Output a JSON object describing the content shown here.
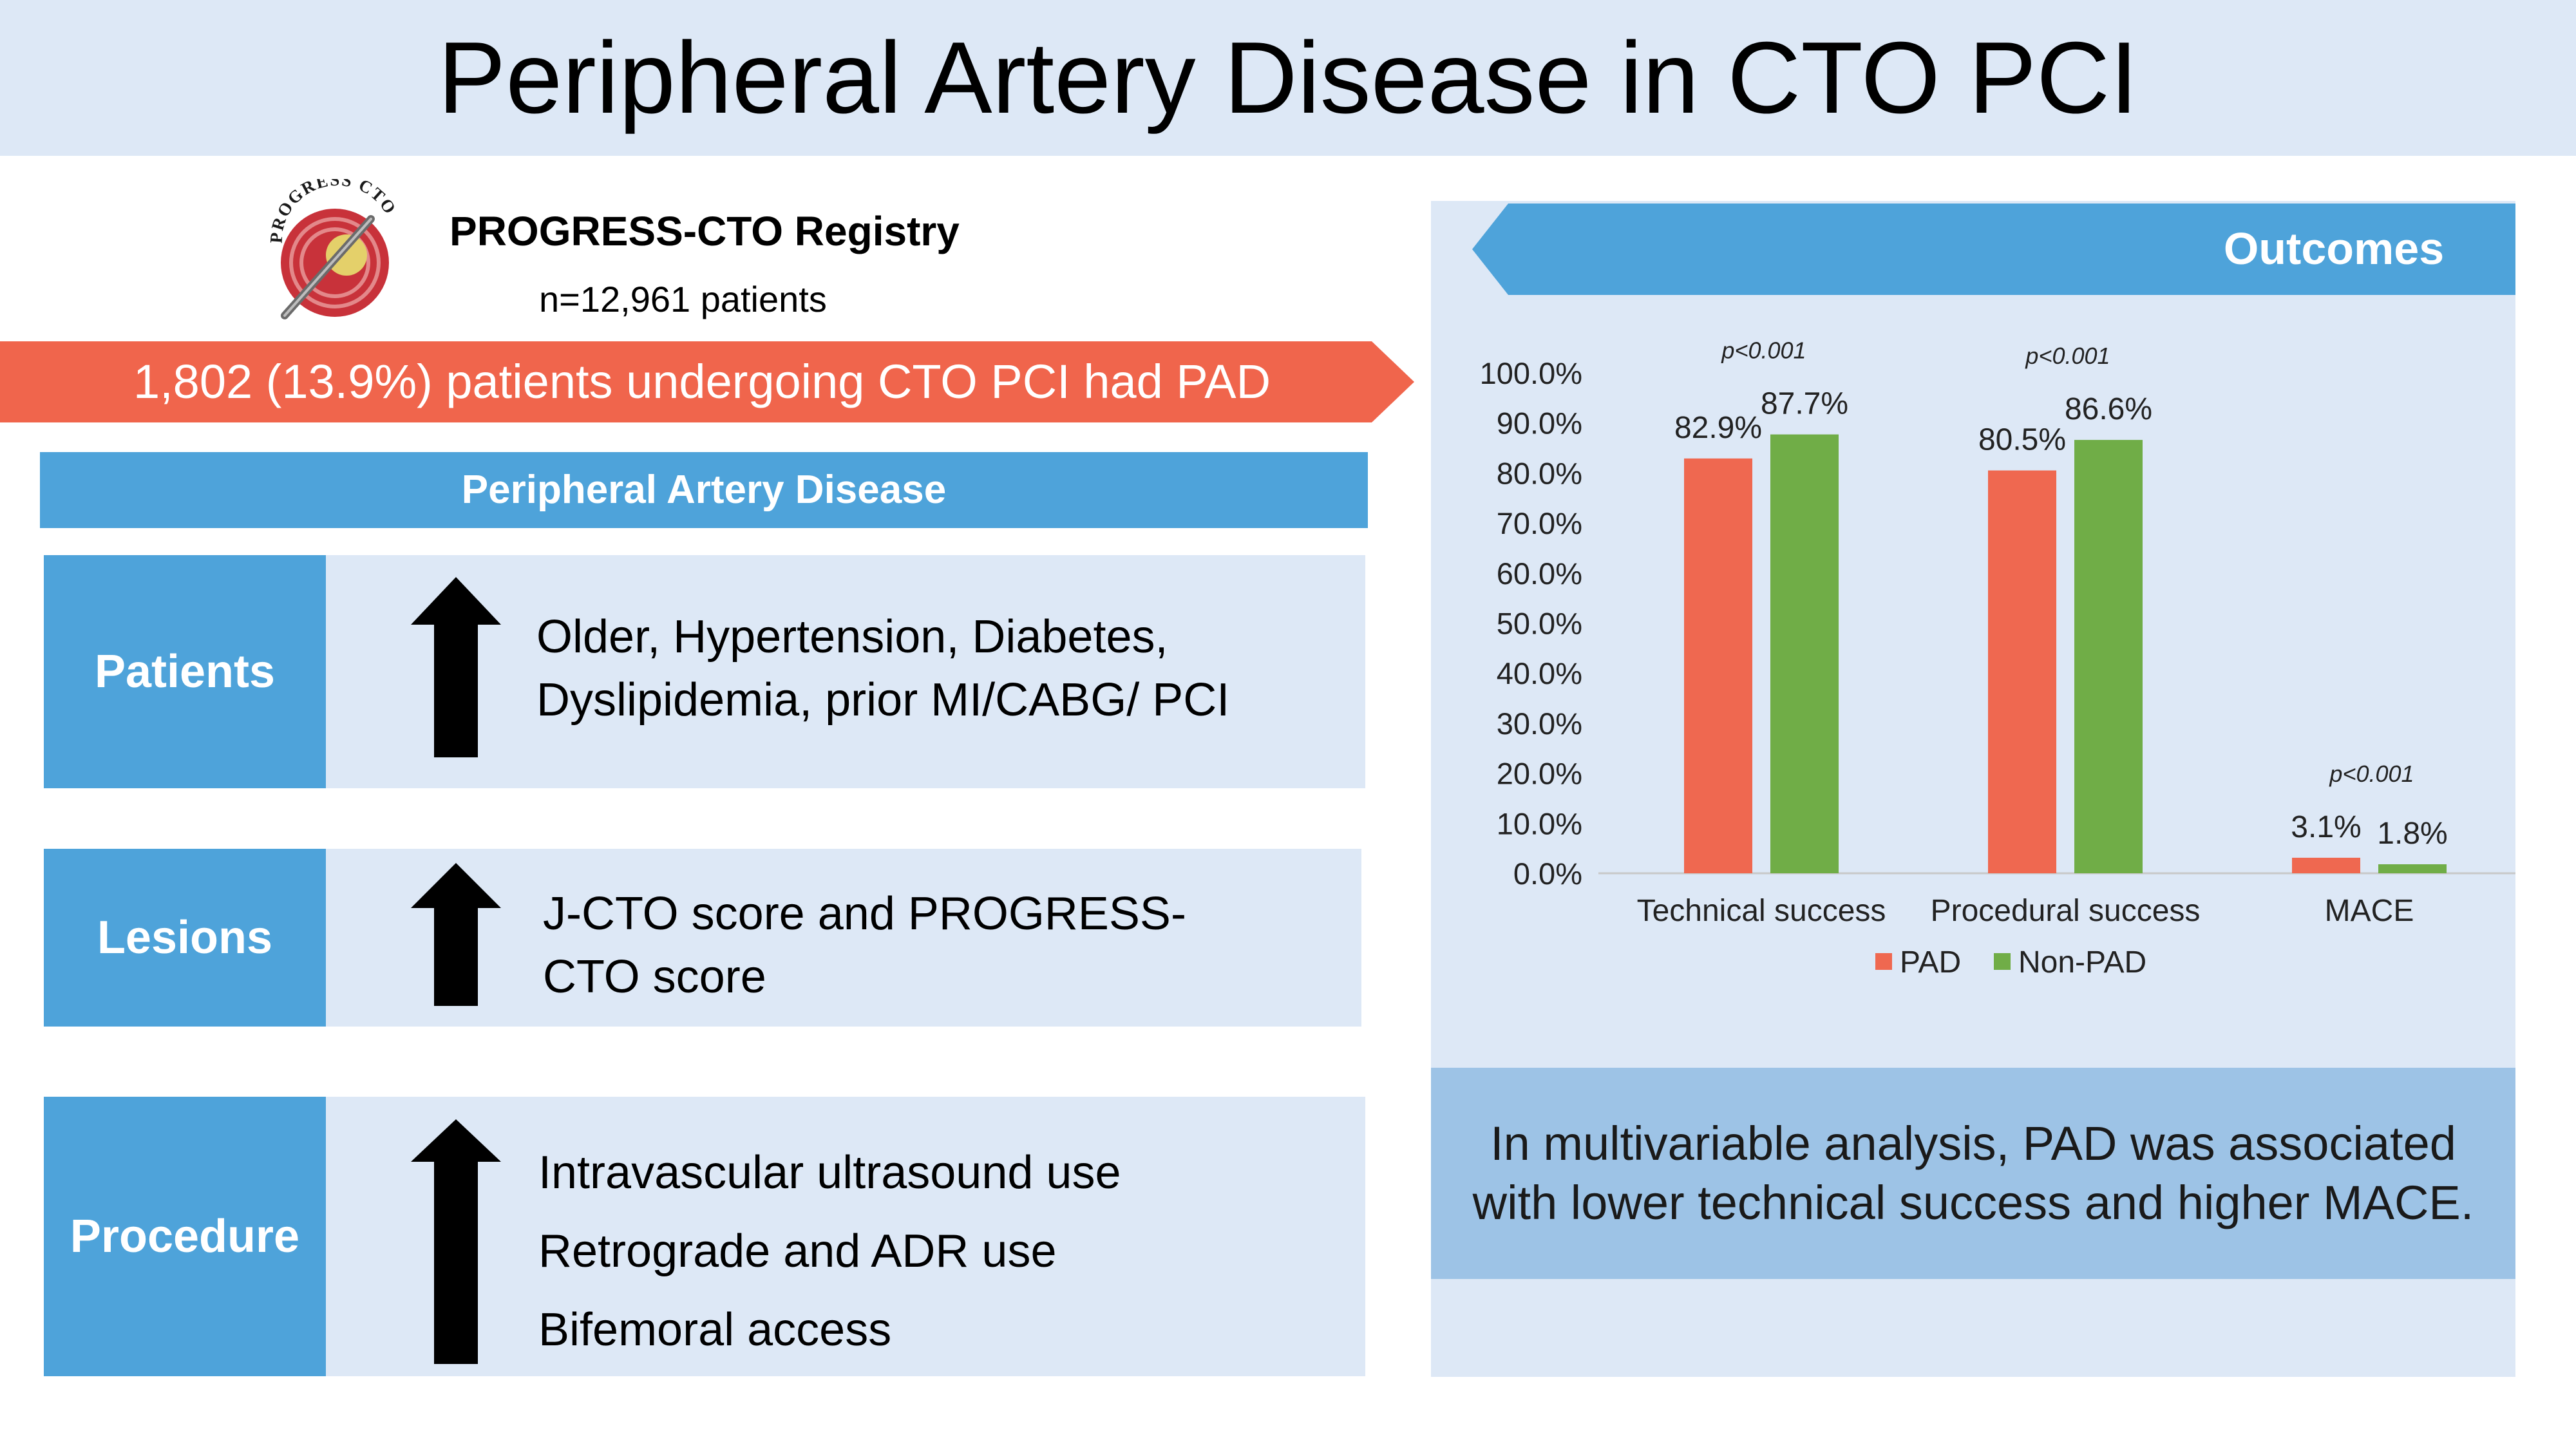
{
  "title": "Peripheral Artery Disease in CTO PCI",
  "logo": {
    "text": "PROGRESS CTO"
  },
  "registry": {
    "name": "PROGRESS-CTO Registry",
    "n": "n=12,961 patients"
  },
  "banner": {
    "text": "1,802 (13.9%) patients undergoing CTO PCI had PAD"
  },
  "pad_header": "Peripheral Artery Disease",
  "rows": [
    {
      "label": "Patients",
      "arrow": "up-arrow-icon",
      "lines": [
        "Older, Hypertension, Diabetes,",
        "Dyslipidemia, prior MI/CABG/ PCI"
      ]
    },
    {
      "label": "Lesions",
      "arrow": "up-arrow-icon",
      "lines": [
        "J-CTO score and PROGRESS-",
        "CTO score"
      ]
    },
    {
      "label": "Procedure",
      "arrow": "up-arrow-icon",
      "lines": [
        "Intravascular ultrasound use",
        "Retrograde and ADR use",
        "Bifemoral access"
      ]
    }
  ],
  "outcomes_label": "Outcomes",
  "summary": {
    "lines": [
      "In multivariable analysis, PAD was associated",
      "with lower technical success and higher MACE."
    ]
  },
  "colors": {
    "pad": "#ef6850",
    "non_pad": "#70ad47",
    "accent_blue": "#4ea3da",
    "panel": "#dde8f6",
    "banner": "#f0654c"
  },
  "chart_data": {
    "type": "bar",
    "categories": [
      "Technical success",
      "Procedural success",
      "MACE"
    ],
    "series": [
      {
        "name": "PAD",
        "values": [
          82.9,
          80.5,
          3.1
        ],
        "labels": [
          "82.9%",
          "80.5%",
          "3.1%"
        ]
      },
      {
        "name": "Non-PAD",
        "values": [
          87.7,
          86.6,
          1.8
        ],
        "labels": [
          "87.7%",
          "86.6%",
          "1.8%"
        ]
      }
    ],
    "p_values": [
      "p<0.001",
      "p<0.001",
      "p<0.001"
    ],
    "ylim": [
      0,
      100
    ],
    "yticks": [
      "0.0%",
      "10.0%",
      "20.0%",
      "30.0%",
      "40.0%",
      "50.0%",
      "60.0%",
      "70.0%",
      "80.0%",
      "90.0%",
      "100.0%"
    ],
    "legend": "bottom",
    "grid": false
  }
}
